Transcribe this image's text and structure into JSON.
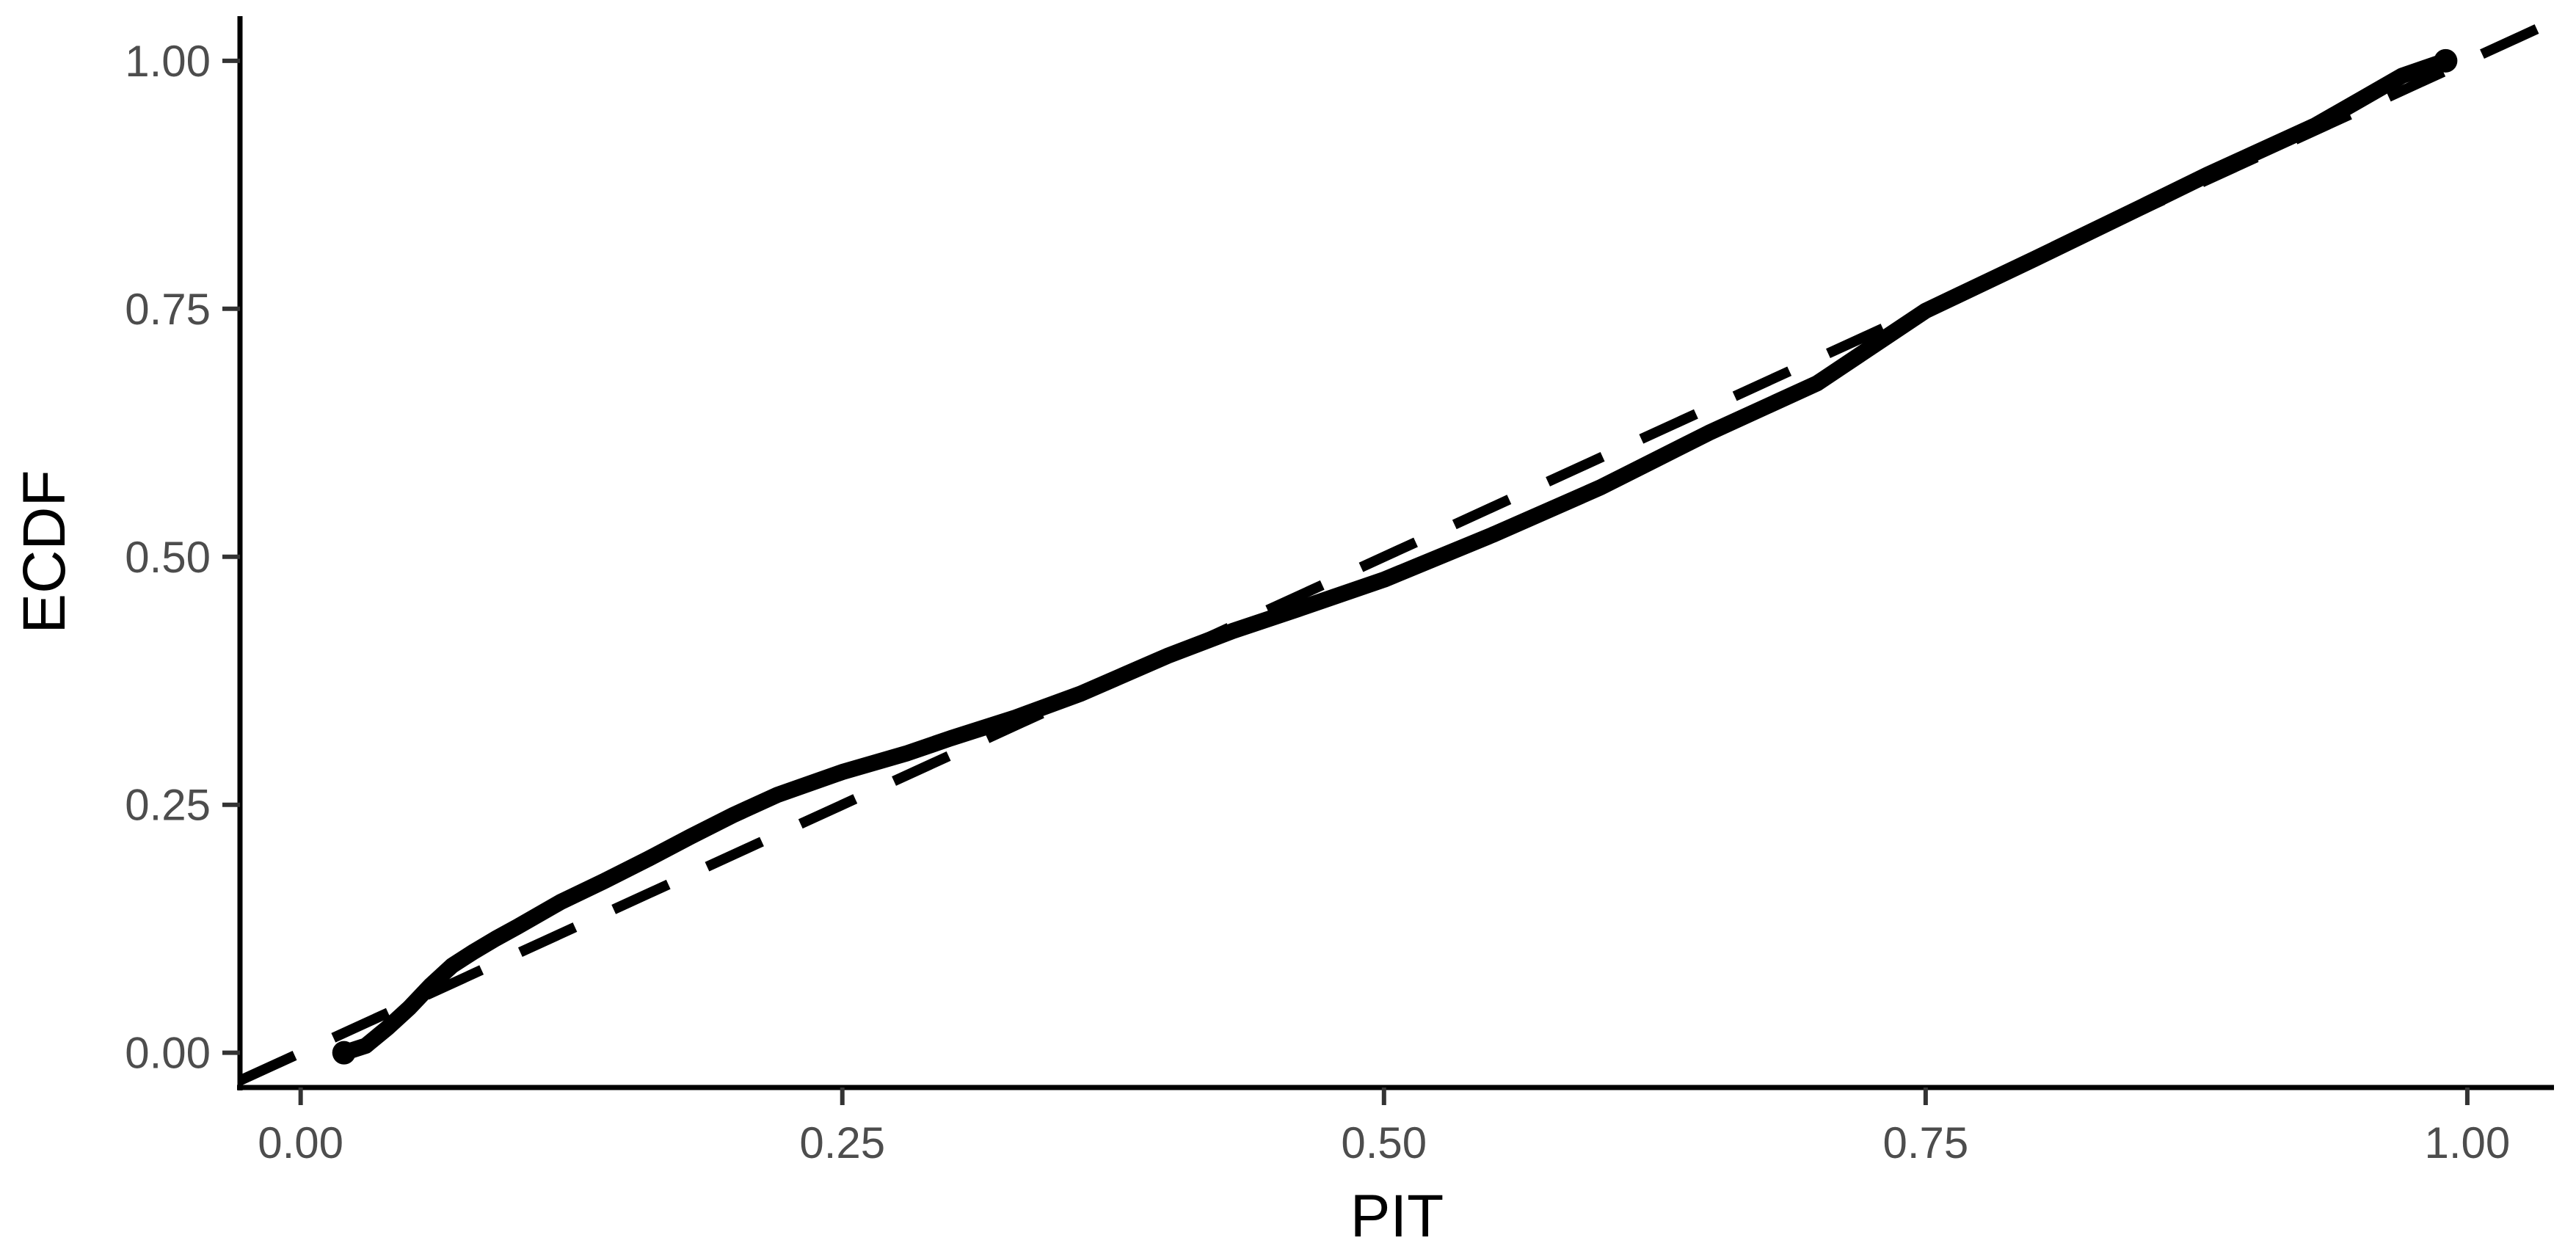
{
  "chart_data": {
    "type": "line",
    "title": "",
    "xlabel": "PIT",
    "ylabel": "ECDF",
    "xlim": [
      -0.028,
      1.04
    ],
    "ylim": [
      -0.035,
      1.045
    ],
    "xticks": [
      0,
      0.25,
      0.5,
      0.75,
      1
    ],
    "xtick_labels": [
      "0.00",
      "0.25",
      "0.50",
      "0.75",
      "1.00"
    ],
    "yticks": [
      0,
      0.25,
      0.5,
      0.75,
      1
    ],
    "ytick_labels": [
      "0.00",
      "0.25",
      "0.50",
      "0.75",
      "1.00"
    ],
    "grid": false,
    "legend": "none",
    "colors": {
      "line": "#000000",
      "reference": "#000000",
      "ticklabel": "#4d4d4d"
    },
    "series": [
      {
        "style": "solid",
        "endpoints": "dot",
        "x": [
          0.02,
          0.03,
          0.04,
          0.05,
          0.06,
          0.07,
          0.08,
          0.09,
          0.1,
          0.12,
          0.14,
          0.16,
          0.18,
          0.2,
          0.22,
          0.25,
          0.28,
          0.3,
          0.33,
          0.36,
          0.4,
          0.43,
          0.46,
          0.5,
          0.55,
          0.6,
          0.65,
          0.7,
          0.75,
          0.8,
          0.85,
          0.88,
          0.9,
          0.93,
          0.95,
          0.97,
          0.99
        ],
        "y": [
          0.0,
          0.007,
          0.025,
          0.045,
          0.068,
          0.088,
          0.102,
          0.115,
          0.127,
          0.152,
          0.173,
          0.195,
          0.218,
          0.24,
          0.26,
          0.283,
          0.302,
          0.317,
          0.338,
          0.362,
          0.4,
          0.425,
          0.447,
          0.477,
          0.522,
          0.57,
          0.625,
          0.675,
          0.748,
          0.8,
          0.853,
          0.885,
          0.905,
          0.935,
          0.96,
          0.985,
          1.0
        ]
      },
      {
        "style": "dashed",
        "x": [
          -0.028,
          1.04
        ],
        "y": [
          -0.028,
          1.04
        ]
      }
    ]
  }
}
